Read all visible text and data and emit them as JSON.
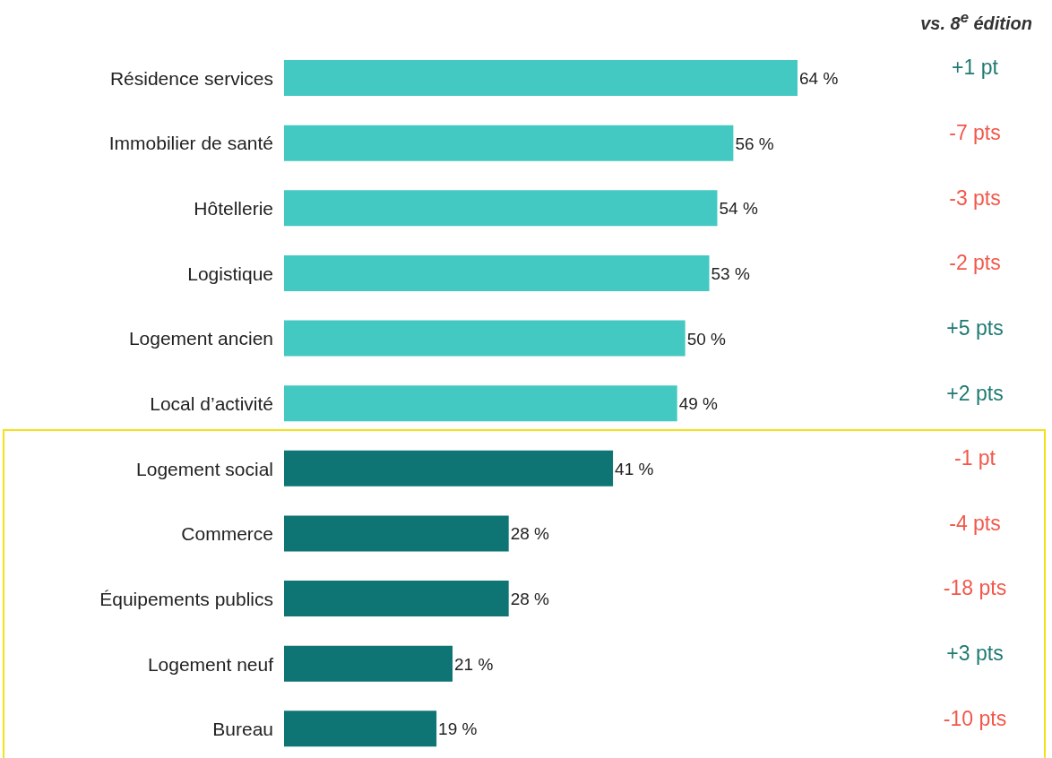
{
  "chart_data": {
    "type": "bar",
    "orientation": "horizontal",
    "categories": [
      "Résidence services",
      "Immobilier de santé",
      "Hôtellerie",
      "Logistique",
      "Logement ancien",
      "Local d’activité",
      "Logement social",
      "Commerce",
      "Équipements publics",
      "Logement neuf",
      "Bureau"
    ],
    "values": [
      64,
      56,
      54,
      53,
      50,
      49,
      41,
      28,
      28,
      21,
      19
    ],
    "colors": [
      "#43c9c1",
      "#43c9c1",
      "#43c9c1",
      "#43c9c1",
      "#43c9c1",
      "#43c9c1",
      "#0e7574",
      "#0e7574",
      "#0e7574",
      "#0e7574",
      "#0e7574"
    ],
    "value_labels": [
      "64 %",
      "56 %",
      "54 %",
      "53 %",
      "50 %",
      "49 %",
      "41 %",
      "28 %",
      "28 %",
      "21 %",
      "19 %"
    ],
    "annotations": [
      "vs. 8$^{e}$ édition",
      "+1 pt",
      "-7 pts",
      "-3 pts",
      "-2 pts",
      "+5 pts",
      "+2 pts",
      "-1 pt",
      "-4 pts",
      "-18 pts",
      "+3 pts",
      "-10 pts"
    ]
  }
}
